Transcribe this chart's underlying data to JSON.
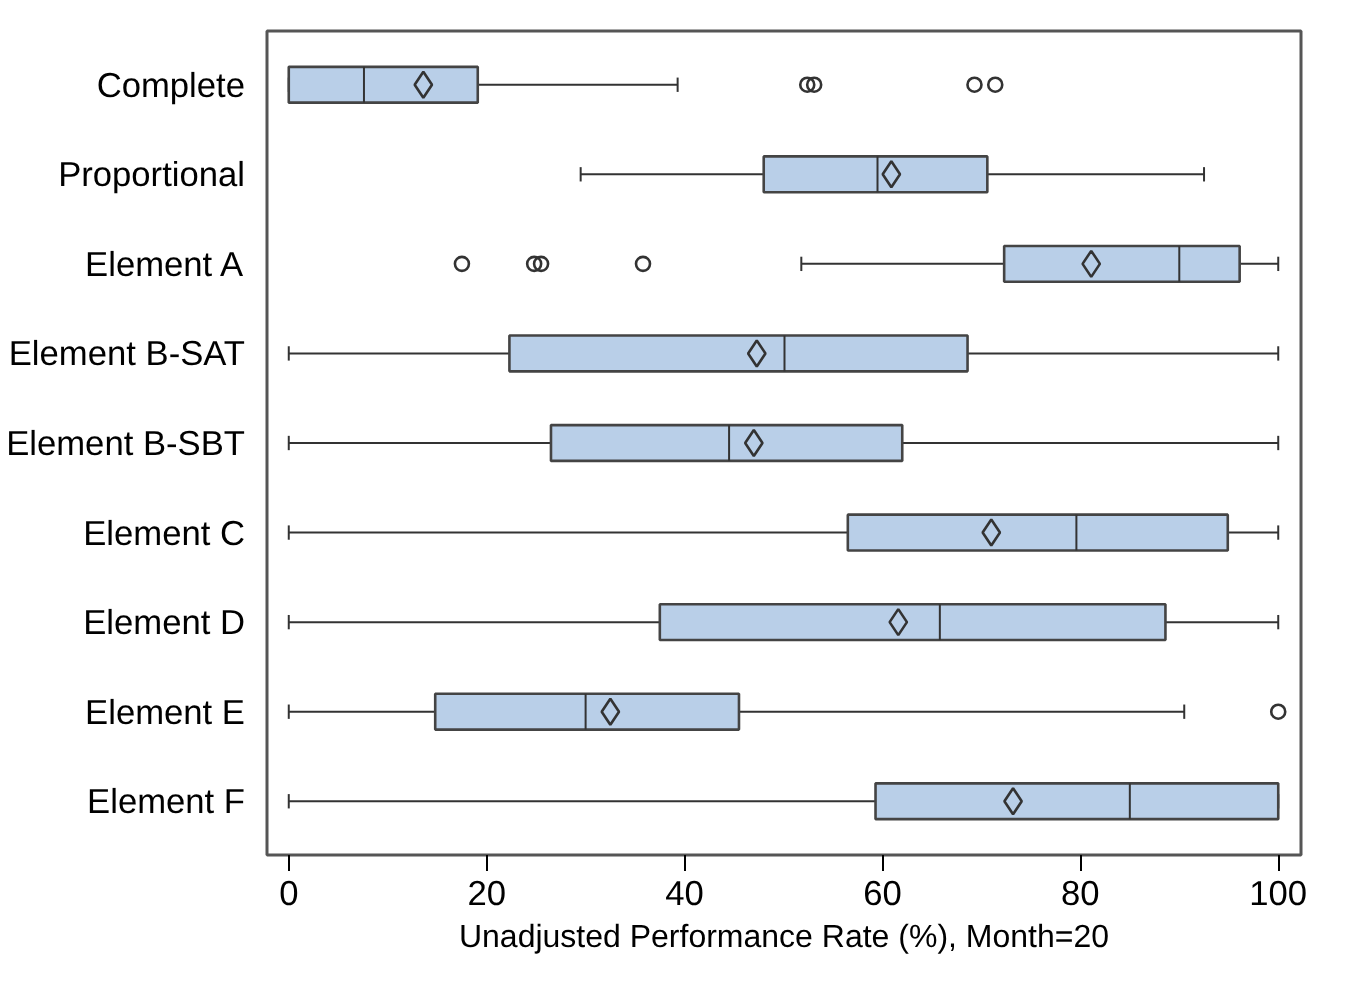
{
  "chart_data": {
    "type": "box",
    "orientation": "horizontal",
    "xlabel": "Unadjusted Performance Rate (%), Month=20",
    "color": "#b9cfe8",
    "grid": false,
    "xlim": [
      -2.2,
      102.3
    ],
    "xticks": [
      0,
      20,
      40,
      60,
      80,
      100
    ],
    "categories": [
      "Complete",
      "Proportional",
      "Element A",
      "Element B-SAT",
      "Element B-SBT",
      "Element C",
      "Element D",
      "Element E",
      "Element F"
    ],
    "boxes": [
      {
        "low": 0,
        "q1": 0,
        "median": 7.6,
        "q3": 19.1,
        "high": 39.3,
        "mean": 13.6,
        "outliers": [
          52.4,
          53.1,
          69.3,
          71.4
        ]
      },
      {
        "low": 29.5,
        "q1": 48,
        "median": 59.5,
        "q3": 70.6,
        "high": 92.5,
        "mean": 60.9
      },
      {
        "low": 51.8,
        "q1": 72.3,
        "median": 90,
        "q3": 96.1,
        "high": 100,
        "mean": 81.1,
        "outliers": [
          17.5,
          24.8,
          25.5,
          35.8
        ]
      },
      {
        "low": 0,
        "q1": 22.3,
        "median": 50.1,
        "q3": 68.6,
        "high": 100,
        "mean": 47.3
      },
      {
        "low": 0,
        "q1": 26.5,
        "median": 44.5,
        "q3": 62,
        "high": 100,
        "mean": 47
      },
      {
        "low": 0,
        "q1": 56.5,
        "median": 79.6,
        "q3": 94.9,
        "high": 100,
        "mean": 71
      },
      {
        "low": 0,
        "q1": 37.5,
        "median": 65.8,
        "q3": 88.6,
        "high": 100,
        "mean": 61.6
      },
      {
        "low": 0,
        "q1": 14.8,
        "median": 30,
        "q3": 45.5,
        "high": 90.5,
        "mean": 32.5,
        "outliers": [
          100
        ]
      },
      {
        "low": 0,
        "q1": 59.3,
        "median": 85,
        "q3": 100,
        "high": 100,
        "mean": 73.2
      }
    ]
  }
}
